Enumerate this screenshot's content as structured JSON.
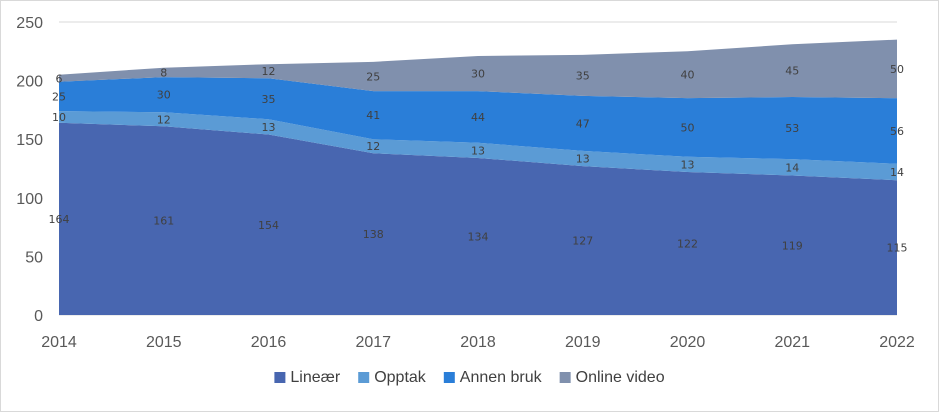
{
  "chart_data": {
    "type": "area",
    "stacked": true,
    "x": [
      "2014",
      "2015",
      "2016",
      "2017",
      "2018",
      "2019",
      "2020",
      "2021",
      "2022"
    ],
    "series": [
      {
        "name": "Lineær",
        "color": "#4866b0",
        "values": [
          164,
          161,
          154,
          138,
          134,
          127,
          122,
          119,
          115
        ]
      },
      {
        "name": "Opptak",
        "color": "#5b9bd5",
        "values": [
          10,
          12,
          13,
          12,
          13,
          13,
          13,
          14,
          14
        ]
      },
      {
        "name": "Annen bruk",
        "color": "#2a7ed8",
        "values": [
          25,
          30,
          35,
          41,
          44,
          47,
          50,
          53,
          56
        ]
      },
      {
        "name": "Online video",
        "color": "#8090ad",
        "values": [
          6,
          8,
          12,
          25,
          30,
          35,
          40,
          45,
          50
        ]
      }
    ],
    "ylim": [
      0,
      250
    ],
    "yticks": [
      "0",
      "50",
      "100",
      "150",
      "200",
      "250"
    ],
    "grid": true,
    "legend": "bottom",
    "title": "",
    "xlabel": "",
    "ylabel": ""
  }
}
